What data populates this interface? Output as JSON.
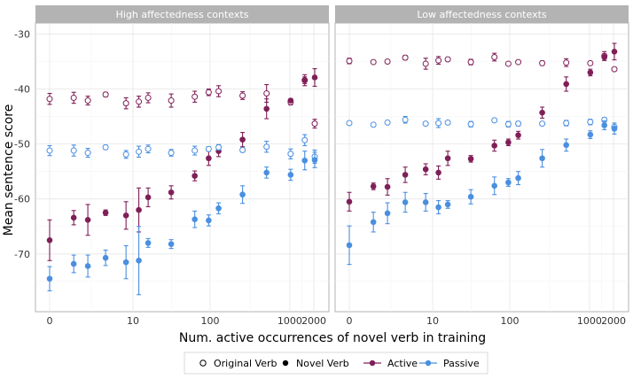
{
  "chart_data": {
    "type": "scatter",
    "xlabel": "Num. active occurrences of novel verb in training",
    "ylabel": "Mean sentence score",
    "x_scale": "log1p",
    "x_ticks": [
      0,
      10,
      100,
      1000,
      2000
    ],
    "x_tick_labels": [
      "0",
      "10",
      "100",
      "1000",
      "2000"
    ],
    "x_positions": [
      0,
      1,
      2,
      4,
      8,
      12,
      16,
      32,
      64,
      96,
      128,
      256,
      512,
      1024,
      1536,
      2048
    ],
    "y_ticks": [
      -30,
      -40,
      -50,
      -60,
      -70
    ],
    "y_tick_labels": [
      "-30",
      "-40",
      "-50",
      "-60",
      "-70"
    ],
    "ylim": [
      -80.5,
      -28
    ],
    "colors": {
      "Active": "#7f1f57",
      "Passive": "#4a8fe0"
    },
    "legend": {
      "position": "bottom",
      "shape_items": [
        {
          "label": "Original Verb",
          "marker": "open-circle"
        },
        {
          "label": "Novel Verb",
          "marker": "filled-circle"
        }
      ],
      "color_items": [
        {
          "label": "Active",
          "marker": "line-point"
        },
        {
          "label": "Passive",
          "marker": "line-point"
        }
      ]
    },
    "panels": [
      {
        "title": "High affectedness contexts",
        "series": [
          {
            "name": "Original Verb - Active",
            "verb": "Original Verb",
            "voice": "Active",
            "y": [
              -41.8,
              -41.6,
              -42.1,
              -41.0,
              -42.6,
              -42.3,
              -41.6,
              -42.1,
              -41.4,
              -40.6,
              -40.4,
              -41.2,
              -40.8,
              -42.4,
              -38.4,
              -46.3
            ],
            "err": [
              1.0,
              1.0,
              0.8,
              0.4,
              1.0,
              1.0,
              0.9,
              1.2,
              1.0,
              0.6,
              1.0,
              0.7,
              1.6,
              0.5,
              1.0,
              0.8
            ]
          },
          {
            "name": "Novel Verb - Active",
            "verb": "Novel Verb",
            "voice": "Active",
            "y": [
              -67.5,
              -63.4,
              -63.8,
              -62.5,
              -63.0,
              -62.0,
              -59.7,
              -58.8,
              -55.8,
              -52.6,
              -51.3,
              -49.2,
              -43.6,
              -42.1,
              -38.4,
              -37.9
            ],
            "err": [
              3.7,
              1.3,
              2.8,
              0.5,
              2.5,
              4.0,
              1.7,
              1.2,
              0.9,
              1.3,
              1.0,
              1.3,
              1.8,
              0.3,
              0.6,
              1.6
            ]
          },
          {
            "name": "Original Verb - Passive",
            "verb": "Original Verb",
            "voice": "Passive",
            "y": [
              -51.2,
              -51.2,
              -51.6,
              -50.6,
              -51.9,
              -51.4,
              -50.9,
              -51.6,
              -51.2,
              -50.9,
              -50.6,
              -51.1,
              -50.5,
              -51.8,
              -49.3,
              -52.3
            ],
            "err": [
              0.9,
              1.0,
              0.8,
              0.4,
              0.7,
              1.0,
              0.7,
              0.6,
              0.8,
              0.4,
              0.5,
              0.4,
              1.0,
              0.9,
              1.0,
              1.2
            ]
          },
          {
            "name": "Novel Verb - Passive",
            "verb": "Novel Verb",
            "voice": "Passive",
            "y": [
              -74.5,
              -71.8,
              -72.2,
              -70.7,
              -71.5,
              -71.2,
              -68.0,
              -68.2,
              -63.7,
              -63.9,
              -61.7,
              -59.2,
              -55.2,
              -55.6,
              -53.0,
              -52.9
            ],
            "err": [
              2.2,
              1.6,
              2.0,
              1.4,
              3.0,
              6.2,
              0.8,
              0.8,
              1.5,
              1.0,
              1.0,
              1.6,
              1.0,
              1.0,
              1.7,
              1.4
            ]
          }
        ]
      },
      {
        "title": "Low affectedness contexts",
        "series": [
          {
            "name": "Original Verb - Active",
            "verb": "Original Verb",
            "voice": "Active",
            "y": [
              -34.9,
              -35.1,
              -35.0,
              -34.3,
              -35.4,
              -34.8,
              -34.6,
              -35.1,
              -34.2,
              -35.4,
              -35.1,
              -35.3,
              -35.2,
              -35.3,
              -34.0,
              -36.4
            ],
            "err": [
              0.5,
              0.3,
              0.3,
              0.4,
              1.0,
              0.7,
              0.3,
              0.5,
              0.7,
              0.3,
              0.3,
              0.4,
              0.7,
              0.3,
              0.8,
              0.3
            ]
          },
          {
            "name": "Novel Verb - Active",
            "verb": "Novel Verb",
            "voice": "Active",
            "y": [
              -60.5,
              -57.7,
              -57.8,
              -55.6,
              -54.6,
              -55.2,
              -52.6,
              -52.7,
              -50.3,
              -49.7,
              -48.4,
              -44.3,
              -39.1,
              -37.0,
              -34.2,
              -33.2
            ],
            "err": [
              1.7,
              0.6,
              1.5,
              1.4,
              1.0,
              1.2,
              1.3,
              0.6,
              1.0,
              0.6,
              0.7,
              1.0,
              1.3,
              0.6,
              0.6,
              1.5
            ]
          },
          {
            "name": "Original Verb - Passive",
            "verb": "Original Verb",
            "voice": "Passive",
            "y": [
              -46.2,
              -46.5,
              -46.1,
              -45.6,
              -46.3,
              -46.2,
              -46.1,
              -46.4,
              -45.7,
              -46.4,
              -46.3,
              -46.3,
              -46.2,
              -46.0,
              -45.6,
              -46.9
            ],
            "err": [
              0.3,
              0.3,
              0.3,
              0.6,
              0.3,
              0.8,
              0.3,
              0.5,
              0.3,
              0.5,
              0.4,
              0.3,
              0.5,
              0.5,
              0.4,
              0.7
            ]
          },
          {
            "name": "Novel Verb - Passive",
            "verb": "Novel Verb",
            "voice": "Passive",
            "y": [
              -68.4,
              -64.2,
              -62.6,
              -60.6,
              -60.6,
              -61.5,
              -61.0,
              -59.6,
              -57.6,
              -57.0,
              -56.2,
              -52.6,
              -50.2,
              -48.3,
              -46.6,
              -47.2
            ],
            "err": [
              3.5,
              1.8,
              1.9,
              1.8,
              1.6,
              1.2,
              0.7,
              1.3,
              1.6,
              0.7,
              1.2,
              1.6,
              1.1,
              0.7,
              0.8,
              1.0
            ]
          }
        ]
      }
    ]
  }
}
